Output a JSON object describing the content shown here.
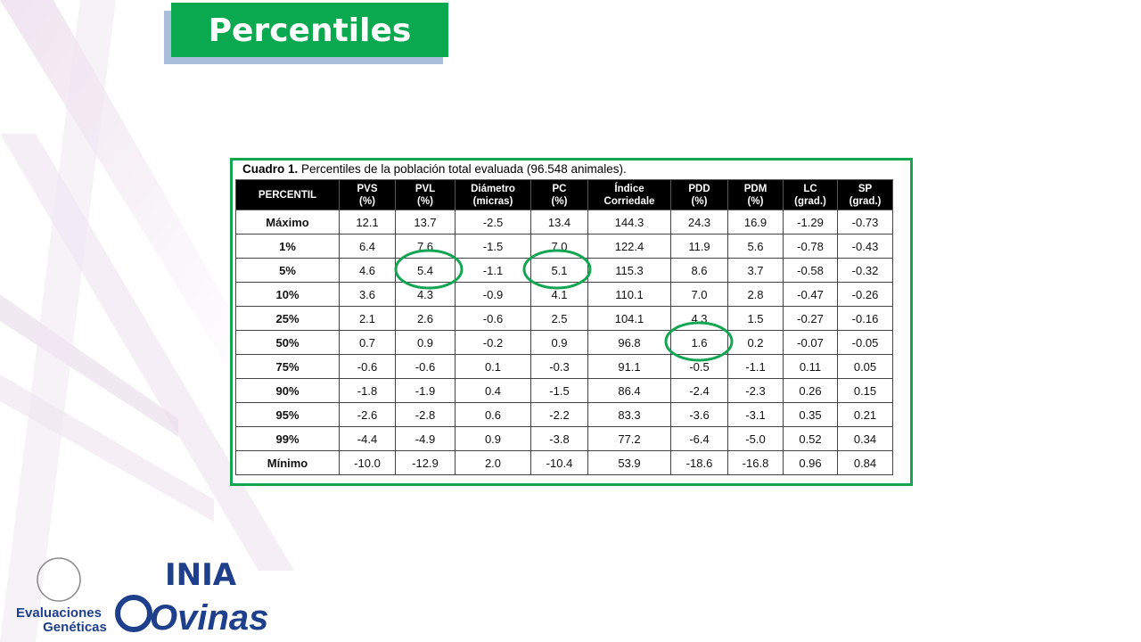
{
  "header": {
    "title": "Percentiles"
  },
  "table": {
    "caption": {
      "label": "Cuadro 1.",
      "text": " Percentiles de la población total evaluada (96.548 animales)."
    },
    "columns": [
      [
        "PERCENTIL"
      ],
      [
        "PVS",
        "(%)"
      ],
      [
        "PVL",
        "(%)"
      ],
      [
        "Diámetro",
        "(micras)"
      ],
      [
        "PC",
        "(%)"
      ],
      [
        "Índice",
        "Corriedale"
      ],
      [
        "PDD",
        "(%)"
      ],
      [
        "PDM",
        "(%)"
      ],
      [
        "LC",
        "(grad.)"
      ],
      [
        "SP",
        "(grad.)"
      ]
    ],
    "rows": [
      [
        "Máximo",
        "12.1",
        "13.7",
        "-2.5",
        "13.4",
        "144.3",
        "24.3",
        "16.9",
        "-1.29",
        "-0.73"
      ],
      [
        "1%",
        "6.4",
        "7.6",
        "-1.5",
        "7.0",
        "122.4",
        "11.9",
        "5.6",
        "-0.78",
        "-0.43"
      ],
      [
        "5%",
        "4.6",
        "5.4",
        "-1.1",
        "5.1",
        "115.3",
        "8.6",
        "3.7",
        "-0.58",
        "-0.32"
      ],
      [
        "10%",
        "3.6",
        "4.3",
        "-0.9",
        "4.1",
        "110.1",
        "7.0",
        "2.8",
        "-0.47",
        "-0.26"
      ],
      [
        "25%",
        "2.1",
        "2.6",
        "-0.6",
        "2.5",
        "104.1",
        "4.3",
        "1.5",
        "-0.27",
        "-0.16"
      ],
      [
        "50%",
        "0.7",
        "0.9",
        "-0.2",
        "0.9",
        "96.8",
        "1.6",
        "0.2",
        "-0.07",
        "-0.05"
      ],
      [
        "75%",
        "-0.6",
        "-0.6",
        "0.1",
        "-0.3",
        "91.1",
        "-0.5",
        "-1.1",
        "0.11",
        "0.05"
      ],
      [
        "90%",
        "-1.8",
        "-1.9",
        "0.4",
        "-1.5",
        "86.4",
        "-2.4",
        "-2.3",
        "0.26",
        "0.15"
      ],
      [
        "95%",
        "-2.6",
        "-2.8",
        "0.6",
        "-2.2",
        "83.3",
        "-3.6",
        "-3.1",
        "0.35",
        "0.21"
      ],
      [
        "99%",
        "-4.4",
        "-4.9",
        "0.9",
        "-3.8",
        "77.2",
        "-6.4",
        "-5.0",
        "0.52",
        "0.34"
      ],
      [
        "Mínimo",
        "-10.0",
        "-12.9",
        "2.0",
        "-10.4",
        "53.9",
        "-18.6",
        "-16.8",
        "0.96",
        "0.84"
      ]
    ]
  },
  "footer": {
    "brand": "INIA",
    "program_line1": "Evaluaciones",
    "program_line2": "Genéticas",
    "program_name": "Ovinas"
  }
}
